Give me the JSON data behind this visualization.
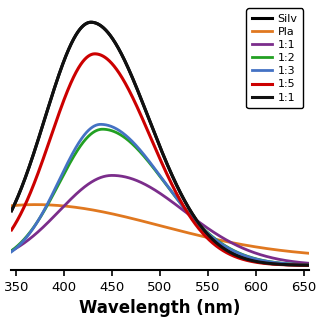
{
  "xlabel": "Wavelength (nm)",
  "xlim": [
    345,
    655
  ],
  "ylim": [
    -0.02,
    1.08
  ],
  "x_ticks": [
    350,
    400,
    450,
    500,
    550,
    600,
    650
  ],
  "x_tick_labels": [
    "350",
    "400",
    "450",
    "500",
    "550",
    "600",
    "650"
  ],
  "legend_entries": [
    {
      "label": "Silv",
      "color": "#000000",
      "lw": 2.2
    },
    {
      "label": "Pla",
      "color": "#E07820",
      "lw": 2.0
    },
    {
      "label": "1:1",
      "color": "#7B2D8B",
      "lw": 2.0
    },
    {
      "label": "1:2",
      "color": "#22A022",
      "lw": 2.0
    },
    {
      "label": "1:3",
      "color": "#4472C4",
      "lw": 2.0
    },
    {
      "label": "1:5",
      "color": "#CC0000",
      "lw": 2.2
    },
    {
      "label": "1:1",
      "color": "#333333",
      "lw": 2.2
    }
  ],
  "curves": [
    {
      "color": "#000000",
      "lw": 2.2,
      "peak": 428,
      "peak_val": 1.0,
      "sigma_l": 48,
      "sigma_r": 60,
      "baseline": 0.0
    },
    {
      "color": "#E07820",
      "lw": 2.0,
      "peak": 370,
      "peak_val": 0.22,
      "sigma_l": 120,
      "sigma_r": 130,
      "baseline": 0.03
    },
    {
      "color": "#7B2D8B",
      "lw": 2.0,
      "peak": 450,
      "peak_val": 0.37,
      "sigma_l": 55,
      "sigma_r": 75,
      "baseline": 0.0
    },
    {
      "color": "#22A022",
      "lw": 2.0,
      "peak": 440,
      "peak_val": 0.56,
      "sigma_l": 45,
      "sigma_r": 65,
      "baseline": 0.0
    },
    {
      "color": "#4472C4",
      "lw": 2.0,
      "peak": 438,
      "peak_val": 0.58,
      "sigma_l": 43,
      "sigma_r": 65,
      "baseline": 0.0
    },
    {
      "color": "#CC0000",
      "lw": 2.2,
      "peak": 432,
      "peak_val": 0.87,
      "sigma_l": 46,
      "sigma_r": 58,
      "baseline": 0.0
    },
    {
      "color": "#111111",
      "lw": 2.2,
      "peak": 428,
      "peak_val": 1.0,
      "sigma_l": 48,
      "sigma_r": 60,
      "baseline": 0.0
    }
  ],
  "background_color": "#ffffff",
  "xlabel_fontsize": 12,
  "xlabel_fontweight": "bold",
  "tick_fontsize": 9.5,
  "legend_fontsize": 8.0
}
